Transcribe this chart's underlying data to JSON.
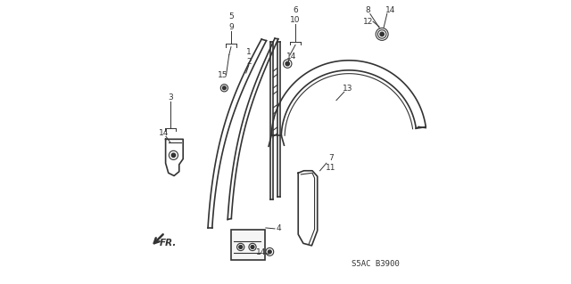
{
  "bg_color": "#ffffff",
  "line_color": "#333333",
  "label_color": "#333333",
  "figsize": [
    6.4,
    3.19
  ],
  "dpi": 100,
  "diagram_code": "S5AC B3900",
  "fr_text": "FR."
}
